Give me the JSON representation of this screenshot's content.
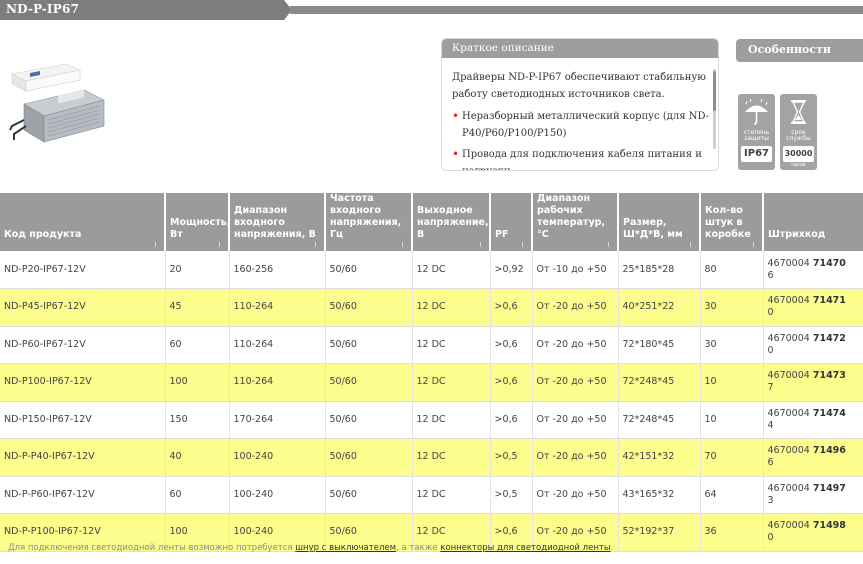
{
  "header": {
    "title": "ND-P-IP67"
  },
  "description": {
    "title": "Краткое описание",
    "intro": "Драйверы ND-P-IP67 обеспечивают стабильную работу светодиодных источников света.",
    "bullets": [
      "Неразборный металлический корпус (для ND-P40/P60/P100/P150)",
      "Провода для подключения кабеля питания и нагрузки"
    ]
  },
  "features": {
    "title": "Особенности",
    "badges": [
      {
        "icon": "umbrella-rain-icon",
        "label": "степень защиты",
        "value": "IP67",
        "sub": ""
      },
      {
        "icon": "hourglass-icon",
        "label": "срок службы",
        "value": "30000",
        "sub": "часов"
      }
    ]
  },
  "table": {
    "columns": [
      "Код продукта",
      "Мощность, Вт",
      "Диапазон входного напряжения, В",
      "Частота входного напряжения, Гц",
      "Выходное напряжение, В",
      "PF",
      "Диапазон рабочих температур, °С",
      "Размер, Ш*Д*В, мм",
      "Кол-во штук в коробке",
      "Штрихкод"
    ],
    "rows": [
      {
        "code": "ND-P20-IP67-12V",
        "power": "20",
        "vin": "160-256",
        "freq": "50/60",
        "vout": "12 DC",
        "pf": ">0,92",
        "temp": "От -10 до +50",
        "size": "25*185*28",
        "qty": "80",
        "bc_a": "4670004",
        "bc_b": "71470",
        "bc_c": "6"
      },
      {
        "code": "ND-P45-IP67-12V",
        "power": "45",
        "vin": "110-264",
        "freq": "50/60",
        "vout": "12 DC",
        "pf": ">0,6",
        "temp": "От -20 до +50",
        "size": "40*251*22",
        "qty": "30",
        "bc_a": "4670004",
        "bc_b": "71471",
        "bc_c": "0"
      },
      {
        "code": "ND-P60-IP67-12V",
        "power": "60",
        "vin": "110-264",
        "freq": "50/60",
        "vout": "12 DC",
        "pf": ">0,6",
        "temp": "От -20 до +50",
        "size": "72*180*45",
        "qty": "30",
        "bc_a": "4670004",
        "bc_b": "71472",
        "bc_c": "0"
      },
      {
        "code": "ND-P100-IP67-12V",
        "power": "100",
        "vin": "110-264",
        "freq": "50/60",
        "vout": "12 DC",
        "pf": ">0,6",
        "temp": "От -20 до +50",
        "size": "72*248*45",
        "qty": "10",
        "bc_a": "4670004",
        "bc_b": "71473",
        "bc_c": "7"
      },
      {
        "code": "ND-P150-IP67-12V",
        "power": "150",
        "vin": "170-264",
        "freq": "50/60",
        "vout": "12 DC",
        "pf": ">0,6",
        "temp": "От -20 до +50",
        "size": "72*248*45",
        "qty": "10",
        "bc_a": "4670004",
        "bc_b": "71474",
        "bc_c": "4"
      },
      {
        "code": "ND-P-P40-IP67-12V",
        "power": "40",
        "vin": "100-240",
        "freq": "50/60",
        "vout": "12 DC",
        "pf": ">0,5",
        "temp": "От -20 до +50",
        "size": "42*151*32",
        "qty": "70",
        "bc_a": "4670004",
        "bc_b": "71496",
        "bc_c": "6"
      },
      {
        "code": "ND-P-P60-IP67-12V",
        "power": "60",
        "vin": "100-240",
        "freq": "50/60",
        "vout": "12 DC",
        "pf": ">0,5",
        "temp": "От -20 до +50",
        "size": "43*165*32",
        "qty": "64",
        "bc_a": "4670004",
        "bc_b": "71497",
        "bc_c": "3"
      },
      {
        "code": "ND-P-P100-IP67-12V",
        "power": "100",
        "vin": "100-240",
        "freq": "50/60",
        "vout": "12 DC",
        "pf": ">0,6",
        "temp": "От -20 до +50",
        "size": "52*192*37",
        "qty": "36",
        "bc_a": "4670004",
        "bc_b": "71498",
        "bc_c": "0"
      }
    ]
  },
  "note": {
    "text1": "Для подключения светодиодной ленты возможно потребуется ",
    "link1": "шнур с выключателем",
    "text2": ", а также ",
    "link2": "коннекторы для светодиодной ленты",
    "text3": "."
  },
  "colors": {
    "header": "#7d7d7d",
    "highlight_row": "#fdfd8e",
    "bullet": "#e1262d"
  }
}
